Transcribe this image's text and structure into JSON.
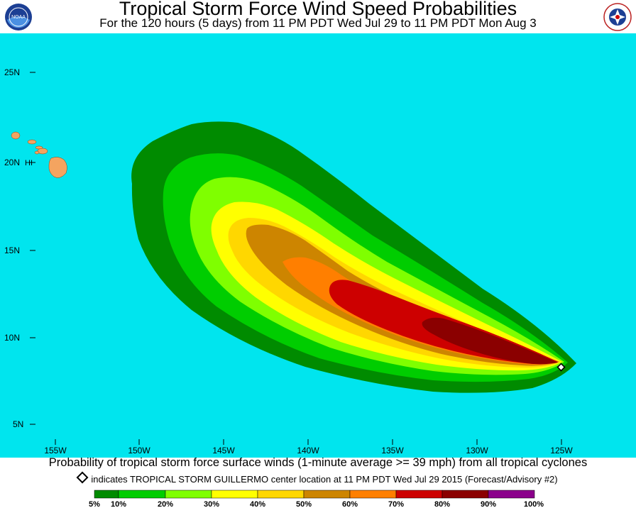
{
  "header": {
    "title": "Tropical Storm Force Wind Speed Probabilities",
    "subtitle": "For the 120 hours (5 days) from 11 PM PDT Wed Jul 29 to 11 PM PDT Mon Aug 3",
    "logo_left": "noaa-logo",
    "logo_right": "national-weather-service-logo"
  },
  "map": {
    "ocean_color": "#00e5ee",
    "land_color": "#f4a460",
    "land_label": "HI",
    "lat_labels": [
      "25N",
      "20N",
      "15N",
      "10N",
      "5N"
    ],
    "lon_labels": [
      "155W",
      "150W",
      "145W",
      "140W",
      "135W",
      "130W",
      "125W"
    ],
    "storm_marker": "storm-center-diamond"
  },
  "footer": {
    "caption": "Probability of tropical storm force surface winds (1-minute average >= 39 mph) from all tropical cyclones",
    "marker_note": "indicates TROPICAL STORM GUILLERMO center location at 11 PM PDT Wed Jul 29 2015 (Forecast/Advisory #2)"
  },
  "legend": {
    "colors": [
      "#008b00",
      "#00cd00",
      "#7fff00",
      "#ffff00",
      "#ffd700",
      "#cd8500",
      "#ff7f00",
      "#cd0000",
      "#8b0000",
      "#8b008b"
    ],
    "labels": [
      "5%",
      "10%",
      "20%",
      "30%",
      "40%",
      "50%",
      "60%",
      "70%",
      "80%",
      "90%",
      "100%"
    ]
  }
}
